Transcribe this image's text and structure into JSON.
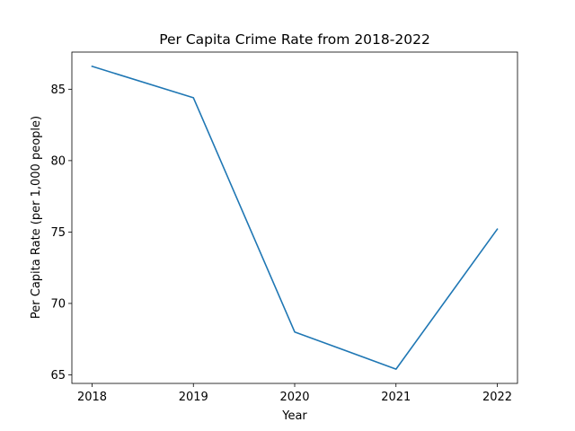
{
  "chart_data": {
    "type": "line",
    "title": "Per Capita Crime Rate from 2018-2022",
    "xlabel": "Year",
    "ylabel": "Per Capita Rate (per 1,000 people)",
    "x": [
      "2018",
      "2019",
      "2020",
      "2021",
      "2022"
    ],
    "x_tick_labels": [
      "2018",
      "2019",
      "2020",
      "2021",
      "2022"
    ],
    "y_ticks": [
      65,
      70,
      75,
      80,
      85
    ],
    "y_tick_labels": [
      "65",
      "70",
      "75",
      "80",
      "85"
    ],
    "ylim": [
      64.4,
      87.6
    ],
    "grid": false,
    "legend": "none",
    "series": [
      {
        "values": [
          86.6,
          84.4,
          68.0,
          65.4,
          75.2
        ],
        "color": "#1f77b4"
      }
    ]
  }
}
